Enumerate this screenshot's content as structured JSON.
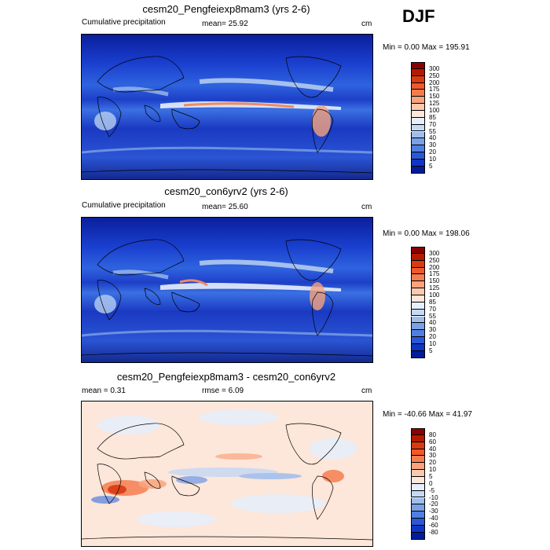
{
  "season": "DJF",
  "panels": [
    {
      "title": "cesm20_Pengfeiexp8mam3 (yrs 2-6)",
      "left_label": "Cumulative precipitation",
      "center_label": "mean=  25.92",
      "units": "cm",
      "minmax": "Min =   0.00 Max = 195.91",
      "colorbar": {
        "labels": [
          "300",
          "250",
          "200",
          "175",
          "150",
          "125",
          "100",
          "85",
          "70",
          "55",
          "40",
          "30",
          "20",
          "10",
          "5"
        ],
        "colors": [
          "#8b0000",
          "#b31b00",
          "#d83a12",
          "#ee5a2a",
          "#f47d4f",
          "#f8a37d",
          "#fbc9ad",
          "#fde6da",
          "#e6effb",
          "#c6d9f4",
          "#9fbdec",
          "#7aa0e5",
          "#4f7fe0",
          "#2a57d8",
          "#1034c4",
          "#001c9c"
        ]
      }
    },
    {
      "title": "cesm20_con6yrv2 (yrs 2-6)",
      "left_label": "Cumulative precipitation",
      "center_label": "mean=  25.60",
      "units": "cm",
      "minmax": "Min =   0.00 Max = 198.06",
      "colorbar": {
        "labels": [
          "300",
          "250",
          "200",
          "175",
          "150",
          "125",
          "100",
          "85",
          "70",
          "55",
          "40",
          "30",
          "20",
          "10",
          "5"
        ],
        "colors": [
          "#8b0000",
          "#b31b00",
          "#d83a12",
          "#ee5a2a",
          "#f47d4f",
          "#f8a37d",
          "#fbc9ad",
          "#fde6da",
          "#e6effb",
          "#c6d9f4",
          "#9fbdec",
          "#7aa0e5",
          "#4f7fe0",
          "#2a57d8",
          "#1034c4",
          "#001c9c"
        ]
      }
    },
    {
      "title": "cesm20_Pengfeiexp8mam3 - cesm20_con6yrv2",
      "left_label": "mean =   0.31",
      "center_label": "rmse =   6.09",
      "units": "cm",
      "minmax": "Min = -40.66 Max =  41.97",
      "colorbar": {
        "labels": [
          "80",
          "60",
          "40",
          "30",
          "20",
          "10",
          "5",
          "0",
          "-5",
          "-10",
          "-20",
          "-30",
          "-40",
          "-60",
          "-80"
        ],
        "colors": [
          "#8b0000",
          "#b31b00",
          "#d83a12",
          "#ee5a2a",
          "#f47d4f",
          "#f8a37d",
          "#fbc9ad",
          "#fde6da",
          "#e6effb",
          "#c6d9f4",
          "#9fbdec",
          "#7aa0e5",
          "#4f7fe0",
          "#2a57d8",
          "#1034c4",
          "#001c9c"
        ]
      }
    }
  ]
}
